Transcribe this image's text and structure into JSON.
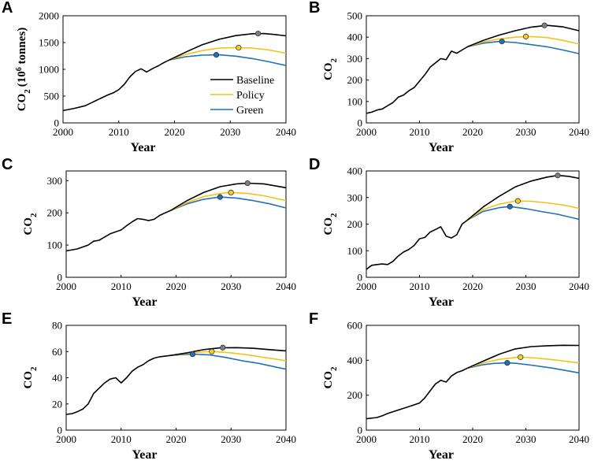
{
  "colors": {
    "baseline": "#000000",
    "policy": "#f2c318",
    "green": "#1f72b8",
    "marker_baseline": "#7f7f7f",
    "marker_policy": "#f5d020",
    "marker_green": "#1f72b8"
  },
  "legend": {
    "baseline": "Baseline",
    "policy": "Policy",
    "green": "Green"
  },
  "chart_data": [
    {
      "id": "A",
      "type": "line",
      "panel_label": "A",
      "xlabel": "Year",
      "ylabel_main": "CO",
      "ylabel_sub": "2",
      "ylabel_unit": "(10",
      "ylabel_unit_sup": "6",
      "ylabel_unit_end": " tonnes)",
      "xlim": [
        2000,
        2040
      ],
      "ylim": [
        0,
        2000
      ],
      "xticks": [
        "2000",
        "2010",
        "2020",
        "2030",
        "2040"
      ],
      "yticks": [
        "0",
        "500",
        "1000",
        "1500",
        "2000"
      ],
      "show_legend": true,
      "history": {
        "x": [
          2000,
          2002,
          2004,
          2006,
          2008,
          2009,
          2010,
          2011,
          2012,
          2013,
          2014,
          2015,
          2016,
          2017,
          2018,
          2019
        ],
        "y": [
          230,
          270,
          320,
          420,
          520,
          560,
          620,
          720,
          860,
          960,
          1010,
          950,
          1010,
          1060,
          1120,
          1170
        ]
      },
      "series": [
        {
          "name": "Baseline",
          "x": [
            2019,
            2022,
            2025,
            2028,
            2031,
            2034,
            2036,
            2038,
            2040
          ],
          "y": [
            1170,
            1320,
            1460,
            1560,
            1630,
            1665,
            1668,
            1650,
            1625
          ]
        },
        {
          "name": "Policy",
          "x": [
            2019,
            2022,
            2025,
            2028,
            2031,
            2034,
            2037,
            2040
          ],
          "y": [
            1170,
            1280,
            1350,
            1395,
            1405,
            1395,
            1360,
            1300
          ]
        },
        {
          "name": "Green",
          "x": [
            2019,
            2022,
            2025,
            2028,
            2031,
            2034,
            2037,
            2040
          ],
          "y": [
            1170,
            1235,
            1265,
            1270,
            1245,
            1200,
            1140,
            1070
          ]
        }
      ],
      "peaks": [
        {
          "name": "Baseline",
          "x": 2035,
          "y": 1668
        },
        {
          "name": "Policy",
          "x": 2031.5,
          "y": 1405
        },
        {
          "name": "Green",
          "x": 2027.5,
          "y": 1270
        }
      ]
    },
    {
      "id": "B",
      "type": "line",
      "panel_label": "B",
      "xlabel": "Year",
      "ylabel_main": "CO",
      "ylabel_sub": "2",
      "xlim": [
        2000,
        2040
      ],
      "ylim": [
        0,
        500
      ],
      "xticks": [
        "2000",
        "2010",
        "2020",
        "2030",
        "2040"
      ],
      "yticks": [
        "0",
        "100",
        "200",
        "300",
        "400",
        "500"
      ],
      "history": {
        "x": [
          2000,
          2001,
          2002,
          2003,
          2004,
          2005,
          2006,
          2007,
          2008,
          2009,
          2010,
          2011,
          2012,
          2013,
          2014,
          2015,
          2016,
          2017,
          2018,
          2019
        ],
        "y": [
          45,
          50,
          60,
          65,
          80,
          95,
          120,
          130,
          150,
          165,
          195,
          225,
          260,
          280,
          300,
          295,
          335,
          325,
          340,
          355
        ]
      },
      "series": [
        {
          "name": "Baseline",
          "x": [
            2019,
            2022,
            2025,
            2028,
            2031,
            2034,
            2037,
            2040
          ],
          "y": [
            355,
            385,
            410,
            430,
            447,
            455,
            448,
            430
          ]
        },
        {
          "name": "Policy",
          "x": [
            2019,
            2022,
            2025,
            2028,
            2031,
            2034,
            2037,
            2040
          ],
          "y": [
            355,
            378,
            392,
            400,
            403,
            398,
            385,
            368
          ]
        },
        {
          "name": "Green",
          "x": [
            2019,
            2022,
            2025,
            2028,
            2031,
            2034,
            2037,
            2040
          ],
          "y": [
            355,
            372,
            380,
            375,
            365,
            355,
            340,
            323
          ]
        }
      ],
      "peaks": [
        {
          "name": "Baseline",
          "x": 2033.5,
          "y": 455
        },
        {
          "name": "Policy",
          "x": 2030,
          "y": 403
        },
        {
          "name": "Green",
          "x": 2025.5,
          "y": 380
        }
      ]
    },
    {
      "id": "C",
      "type": "line",
      "panel_label": "C",
      "xlabel": "Year",
      "ylabel_main": "CO",
      "ylabel_sub": "2",
      "xlim": [
        2000,
        2040
      ],
      "ylim": [
        0,
        330
      ],
      "xticks": [
        "2000",
        "2010",
        "2020",
        "2030",
        "2040"
      ],
      "yticks": [
        "0",
        "100",
        "200",
        "300"
      ],
      "ytick_values": [
        0,
        100,
        200,
        300
      ],
      "history": {
        "x": [
          2000,
          2002,
          2004,
          2005,
          2006,
          2008,
          2010,
          2011,
          2012,
          2013,
          2014,
          2015,
          2016,
          2017,
          2018,
          2019
        ],
        "y": [
          82,
          88,
          100,
          112,
          115,
          135,
          147,
          160,
          172,
          182,
          180,
          176,
          180,
          192,
          200,
          207
        ]
      },
      "series": [
        {
          "name": "Baseline",
          "x": [
            2019,
            2022,
            2025,
            2028,
            2031,
            2033,
            2036,
            2040
          ],
          "y": [
            207,
            238,
            263,
            281,
            290,
            292,
            290,
            278
          ]
        },
        {
          "name": "Policy",
          "x": [
            2019,
            2022,
            2025,
            2028,
            2030,
            2033,
            2036,
            2040
          ],
          "y": [
            207,
            232,
            250,
            260,
            263,
            260,
            253,
            238
          ]
        },
        {
          "name": "Green",
          "x": [
            2019,
            2022,
            2025,
            2028,
            2031,
            2034,
            2037,
            2040
          ],
          "y": [
            207,
            228,
            242,
            249,
            246,
            238,
            228,
            215
          ]
        }
      ],
      "peaks": [
        {
          "name": "Baseline",
          "x": 2033,
          "y": 292
        },
        {
          "name": "Policy",
          "x": 2030,
          "y": 263
        },
        {
          "name": "Green",
          "x": 2028,
          "y": 249
        }
      ]
    },
    {
      "id": "D",
      "type": "line",
      "panel_label": "D",
      "xlabel": "Year",
      "ylabel_main": "CO",
      "ylabel_sub": "2",
      "xlim": [
        2000,
        2040
      ],
      "ylim": [
        0,
        400
      ],
      "xticks": [
        "2000",
        "2010",
        "2020",
        "2030",
        "2040"
      ],
      "yticks": [
        "0",
        "100",
        "200",
        "300",
        "400"
      ],
      "history": {
        "x": [
          2000,
          2001,
          2002,
          2003,
          2004,
          2005,
          2006,
          2007,
          2008,
          2009,
          2010,
          2011,
          2012,
          2013,
          2014,
          2015,
          2016,
          2017,
          2018,
          2019
        ],
        "y": [
          30,
          45,
          48,
          50,
          48,
          60,
          80,
          95,
          105,
          120,
          145,
          150,
          170,
          180,
          190,
          155,
          148,
          160,
          200,
          215
        ]
      },
      "series": [
        {
          "name": "Baseline",
          "x": [
            2019,
            2022,
            2025,
            2028,
            2031,
            2034,
            2036,
            2038,
            2040
          ],
          "y": [
            215,
            265,
            305,
            340,
            362,
            377,
            383,
            380,
            372
          ]
        },
        {
          "name": "Policy",
          "x": [
            2019,
            2022,
            2025,
            2028,
            2031,
            2034,
            2037,
            2040
          ],
          "y": [
            215,
            255,
            275,
            287,
            286,
            280,
            272,
            260
          ]
        },
        {
          "name": "Green",
          "x": [
            2019,
            2022,
            2025,
            2027,
            2030,
            2033,
            2036,
            2040
          ],
          "y": [
            215,
            248,
            262,
            266,
            258,
            247,
            237,
            218
          ]
        }
      ],
      "peaks": [
        {
          "name": "Baseline",
          "x": 2036,
          "y": 383
        },
        {
          "name": "Policy",
          "x": 2028.5,
          "y": 287
        },
        {
          "name": "Green",
          "x": 2027,
          "y": 266
        }
      ]
    },
    {
      "id": "E",
      "type": "line",
      "panel_label": "E",
      "xlabel": "Year",
      "ylabel_main": "CO",
      "ylabel_sub": "2",
      "xlim": [
        2000,
        2040
      ],
      "ylim": [
        0,
        80
      ],
      "xticks": [
        "2000",
        "2010",
        "2020",
        "2030",
        "2040"
      ],
      "yticks": [
        "0",
        "20",
        "40",
        "60",
        "80"
      ],
      "history": {
        "x": [
          2000,
          2001,
          2002,
          2003,
          2004,
          2005,
          2006,
          2007,
          2008,
          2009,
          2010,
          2011,
          2012,
          2013,
          2014,
          2015,
          2016,
          2017,
          2018,
          2019
        ],
        "y": [
          12,
          12.5,
          14,
          16,
          20,
          28,
          32,
          36,
          39,
          40,
          36,
          40,
          45,
          48,
          50,
          53,
          55,
          56,
          56.5,
          57
        ]
      },
      "series": [
        {
          "name": "Baseline",
          "x": [
            2019,
            2022,
            2025,
            2028,
            2031,
            2034,
            2037,
            2040
          ],
          "y": [
            57,
            59,
            61.5,
            62.8,
            63,
            62.5,
            61.5,
            60.5
          ]
        },
        {
          "name": "Policy",
          "x": [
            2019,
            2022,
            2025,
            2027,
            2030,
            2033,
            2036,
            2040
          ],
          "y": [
            57,
            58.5,
            59.8,
            60,
            59,
            57.5,
            55.5,
            53
          ]
        },
        {
          "name": "Green",
          "x": [
            2019,
            2021,
            2023,
            2026,
            2029,
            2032,
            2035,
            2040
          ],
          "y": [
            57,
            57.6,
            58,
            57.5,
            55.5,
            53,
            51,
            46.5
          ]
        }
      ],
      "peaks": [
        {
          "name": "Baseline",
          "x": 2028.5,
          "y": 63
        },
        {
          "name": "Policy",
          "x": 2026.5,
          "y": 60
        },
        {
          "name": "Green",
          "x": 2023,
          "y": 58
        }
      ]
    },
    {
      "id": "F",
      "type": "line",
      "panel_label": "F",
      "xlabel": "Year",
      "ylabel_main": "CO",
      "ylabel_sub": "2",
      "xlim": [
        2000,
        2040
      ],
      "ylim": [
        0,
        600
      ],
      "xticks": [
        "2000",
        "2010",
        "2020",
        "2030",
        "2040"
      ],
      "yticks": [
        "0",
        "200",
        "400",
        "600"
      ],
      "history": {
        "x": [
          2000,
          2002,
          2003,
          2004,
          2006,
          2008,
          2010,
          2011,
          2012,
          2013,
          2014,
          2015,
          2016,
          2017,
          2018,
          2019
        ],
        "y": [
          65,
          72,
          82,
          95,
          115,
          135,
          155,
          185,
          225,
          265,
          285,
          275,
          310,
          330,
          340,
          355
        ]
      },
      "series": [
        {
          "name": "Baseline",
          "x": [
            2019,
            2022,
            2025,
            2028,
            2031,
            2034,
            2037,
            2040
          ],
          "y": [
            355,
            395,
            435,
            465,
            478,
            483,
            486,
            485
          ]
        },
        {
          "name": "Policy",
          "x": [
            2019,
            2022,
            2025,
            2028,
            2029,
            2032,
            2036,
            2040
          ],
          "y": [
            355,
            385,
            405,
            416,
            418,
            413,
            400,
            385
          ]
        },
        {
          "name": "Green",
          "x": [
            2019,
            2022,
            2024,
            2026,
            2028,
            2031,
            2035,
            2040
          ],
          "y": [
            355,
            375,
            382,
            385,
            383,
            372,
            355,
            328
          ]
        }
      ],
      "peaks": [
        {
          "name": "Baseline",
          "x": 2036,
          "y": 486,
          "hidden": true
        },
        {
          "name": "Policy",
          "x": 2029,
          "y": 418
        },
        {
          "name": "Green",
          "x": 2026.5,
          "y": 385
        }
      ]
    }
  ]
}
